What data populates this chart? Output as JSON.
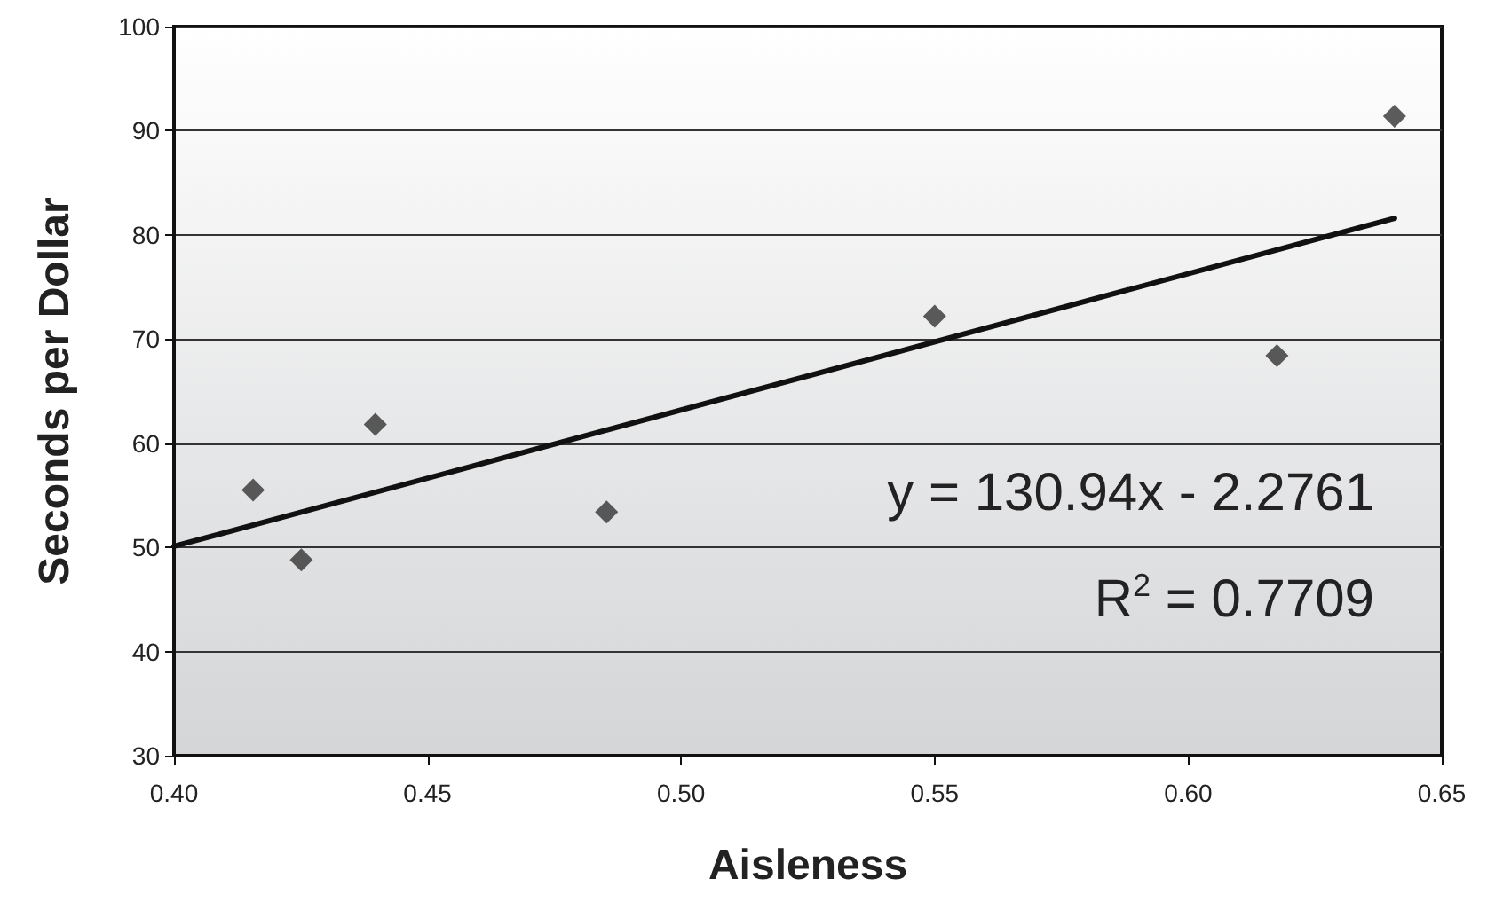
{
  "chart_data": {
    "type": "scatter",
    "xlabel": "Aisleness",
    "ylabel": "Seconds per Dollar",
    "series": [
      {
        "color": "#333333",
        "marker": "diamond",
        "x": [
          0.4156,
          0.4251,
          0.4397,
          0.4853,
          0.55,
          0.6175,
          0.6407
        ],
        "values": [
          55.5,
          48.8,
          61.8,
          53.4,
          72.2,
          68.4,
          91.4
        ]
      },
      {
        "type": "line",
        "color": "#111111",
        "marker": "none",
        "line_style": "solid",
        "x": [
          0.4,
          0.6407
        ],
        "values": [
          50.1,
          81.6
        ]
      }
    ],
    "xlim": [
      0.4,
      0.65
    ],
    "xticks": [
      {
        "value": 0.4,
        "label": "0.40"
      },
      {
        "value": 0.45,
        "label": "0.45"
      },
      {
        "value": 0.5,
        "label": "0.50"
      },
      {
        "value": 0.55,
        "label": "0.55"
      },
      {
        "value": 0.6,
        "label": "0.60"
      },
      {
        "value": 0.65,
        "label": "0.65"
      }
    ],
    "ylim": [
      30,
      100
    ],
    "yticks": [
      30,
      40,
      50,
      60,
      70,
      80,
      90,
      100
    ],
    "grid": "y",
    "annotations": [
      "y = 130.94x - 2.2761",
      "R$^{2}$ = 0.7709"
    ]
  }
}
